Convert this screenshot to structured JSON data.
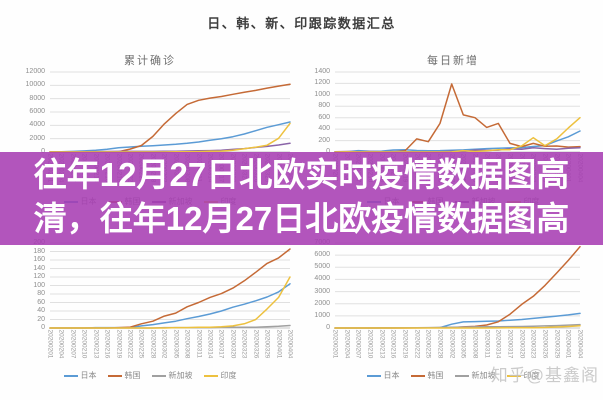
{
  "page": {
    "main_title": "日、韩、新、印跟踪数据汇总",
    "overlay": {
      "line1": "往年12月27日北欧实时疫情数据图高",
      "line2": "清，往年12月27日北欧疫情数据图高",
      "background_color": "#a63cb2",
      "text_color": "#ffffff"
    },
    "watermark": "知乎@基鑫阁",
    "watermark_color": "#c3c3c3"
  },
  "chart_data": [
    {
      "type": "line",
      "title": "累计确诊",
      "grid": true,
      "legend_position": "bottom",
      "ylim": [
        0,
        12000
      ],
      "ytick": 2000,
      "x": [
        "20200201",
        "20200204",
        "20200207",
        "20200210",
        "20200213",
        "20200216",
        "20200219",
        "20200222",
        "20200225",
        "20200228",
        "20200302",
        "20200305",
        "20200308",
        "20200311",
        "20200314",
        "20200317",
        "20200320",
        "20200323",
        "20200326",
        "20200329",
        "20200401",
        "20200404"
      ],
      "series": [
        {
          "name": "日本",
          "color": "#5b9bd5",
          "values": [
            20,
            25,
            90,
            160,
            250,
            410,
            630,
            750,
            850,
            950,
            1050,
            1150,
            1300,
            1500,
            1750,
            2000,
            2300,
            2700,
            3200,
            3700,
            4100,
            4500
          ]
        },
        {
          "name": "韩国",
          "color": "#c56a36",
          "values": [
            12,
            15,
            24,
            27,
            28,
            29,
            46,
            433,
            977,
            2337,
            4212,
            5766,
            7134,
            7755,
            8086,
            8320,
            8652,
            8961,
            9241,
            9583,
            9887,
            10156
          ]
        },
        {
          "name": "新加坡",
          "color": "#8a64a8",
          "values": [
            16,
            24,
            30,
            45,
            58,
            75,
            84,
            89,
            91,
            96,
            108,
            117,
            150,
            178,
            212,
            266,
            385,
            509,
            683,
            844,
            1049,
            1309
          ]
        },
        {
          "name": "印度",
          "color": "#edc13f",
          "values": [
            1,
            3,
            3,
            3,
            3,
            3,
            3,
            3,
            3,
            3,
            5,
            30,
            39,
            62,
            102,
            142,
            249,
            499,
            727,
            1024,
            2059,
            4289
          ]
        }
      ]
    },
    {
      "type": "line",
      "title": "每日新增",
      "grid": true,
      "legend_position": "bottom",
      "ylim": [
        0,
        1400
      ],
      "ytick": 200,
      "x": [
        "20200201",
        "20200204",
        "20200207",
        "20200210",
        "20200213",
        "20200216",
        "20200219",
        "20200222",
        "20200225",
        "20200228",
        "20200302",
        "20200305",
        "20200308",
        "20200311",
        "20200314",
        "20200317",
        "20200320",
        "20200323",
        "20200326",
        "20200329",
        "20200401",
        "20200404"
      ],
      "series": [
        {
          "name": "日本",
          "color": "#5b9bd5",
          "values": [
            3,
            4,
            25,
            12,
            15,
            35,
            40,
            27,
            22,
            24,
            32,
            36,
            47,
            59,
            64,
            71,
            77,
            96,
            112,
            194,
            266,
            368
          ]
        },
        {
          "name": "韩国",
          "color": "#c56a36",
          "values": [
            2,
            3,
            6,
            3,
            5,
            2,
            20,
            230,
            180,
            500,
            1190,
            650,
            600,
            430,
            500,
            150,
            95,
            150,
            100,
            105,
            85,
            95
          ]
        },
        {
          "name": "新加坡",
          "color": "#8a64a8",
          "values": [
            5,
            8,
            4,
            9,
            6,
            8,
            5,
            3,
            2,
            5,
            12,
            9,
            33,
            28,
            34,
            54,
            47,
            73,
            60,
            49,
            65,
            75
          ]
        },
        {
          "name": "印度",
          "color": "#edc13f",
          "values": [
            0,
            1,
            0,
            0,
            0,
            0,
            0,
            0,
            0,
            0,
            2,
            25,
            9,
            23,
            40,
            40,
            107,
            250,
            110,
            230,
            420,
            601
          ]
        }
      ]
    },
    {
      "type": "line",
      "title": "",
      "grid": true,
      "legend_position": "bottom",
      "ylim": [
        0,
        200
      ],
      "ytick": 20,
      "x": [
        "20200201",
        "20200204",
        "20200207",
        "20200210",
        "20200213",
        "20200216",
        "20200219",
        "20200222",
        "20200225",
        "20200228",
        "20200302",
        "20200305",
        "20200308",
        "20200311",
        "20200314",
        "20200317",
        "20200320",
        "20200323",
        "20200326",
        "20200329",
        "20200401",
        "20200404"
      ],
      "series": [
        {
          "name": "日本",
          "color": "#5b9bd5",
          "values": [
            0,
            0,
            0,
            0,
            1,
            1,
            1,
            1,
            5,
            8,
            12,
            16,
            22,
            27,
            33,
            40,
            49,
            56,
            64,
            73,
            85,
            104
          ]
        },
        {
          "name": "韩国",
          "color": "#c56a36",
          "values": [
            0,
            0,
            0,
            0,
            0,
            0,
            1,
            2,
            10,
            16,
            28,
            35,
            50,
            60,
            72,
            81,
            94,
            111,
            131,
            152,
            165,
            186
          ]
        },
        {
          "name": "新加坡",
          "color": "#a0a0a0",
          "values": [
            0,
            0,
            0,
            0,
            0,
            0,
            0,
            0,
            0,
            0,
            1,
            1,
            1,
            1,
            1,
            2,
            2,
            2,
            2,
            3,
            4,
            6
          ]
        },
        {
          "name": "印度",
          "color": "#edc13f",
          "values": [
            0,
            0,
            0,
            0,
            0,
            0,
            0,
            0,
            0,
            0,
            0,
            1,
            1,
            2,
            2,
            3,
            5,
            10,
            20,
            45,
            72,
            120
          ]
        }
      ]
    },
    {
      "type": "line",
      "title": "",
      "grid": true,
      "legend_position": "bottom",
      "ylim": [
        0,
        7000
      ],
      "ytick": 1000,
      "x": [
        "20200201",
        "20200204",
        "20200207",
        "20200210",
        "20200213",
        "20200216",
        "20200219",
        "20200222",
        "20200225",
        "20200228",
        "20200302",
        "20200305",
        "20200308",
        "20200311",
        "20200314",
        "20200317",
        "20200320",
        "20200323",
        "20200326",
        "20200329",
        "20200401",
        "20200404"
      ],
      "series": [
        {
          "name": "日本",
          "color": "#5b9bd5",
          "values": [
            1,
            1,
            1,
            4,
            9,
            12,
            22,
            22,
            23,
            32,
            310,
            500,
            530,
            560,
            580,
            640,
            700,
            790,
            880,
            980,
            1080,
            1200
          ]
        },
        {
          "name": "韩国",
          "color": "#c56a36",
          "values": [
            0,
            0,
            0,
            0,
            0,
            1,
            2,
            10,
            22,
            27,
            30,
            88,
            130,
            247,
            510,
            1137,
            1947,
            2612,
            3507,
            4528,
            5567,
            6694
          ]
        },
        {
          "name": "新加坡",
          "color": "#a0a0a0",
          "values": [
            0,
            0,
            0,
            1,
            2,
            5,
            15,
            24,
            34,
            51,
            62,
            78,
            90,
            96,
            105,
            114,
            124,
            144,
            172,
            198,
            240,
            282
          ]
        },
        {
          "name": "印度",
          "color": "#edc13f",
          "values": [
            0,
            0,
            0,
            0,
            0,
            0,
            0,
            0,
            3,
            3,
            3,
            3,
            4,
            4,
            10,
            14,
            20,
            27,
            45,
            80,
            123,
            179
          ]
        }
      ]
    }
  ]
}
